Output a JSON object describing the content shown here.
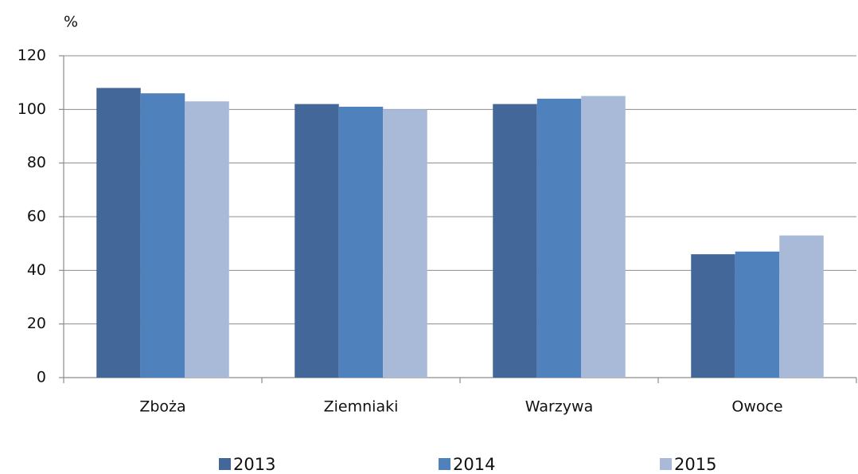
{
  "chart_data": {
    "type": "bar",
    "y_label": "%",
    "categories": [
      "Zboża",
      "Ziemniaki",
      "Warzywa",
      "Owoce"
    ],
    "series": [
      {
        "name": "2013",
        "color": "#44679a",
        "values": [
          108,
          102,
          102,
          46
        ]
      },
      {
        "name": "2014",
        "color": "#4f81bd",
        "values": [
          106,
          101,
          104,
          47
        ]
      },
      {
        "name": "2015",
        "color": "#a9b9d8",
        "values": [
          103,
          100,
          105,
          53
        ]
      }
    ],
    "ylim": [
      0,
      120
    ],
    "yticks": [
      0,
      20,
      40,
      60,
      80,
      100,
      120
    ],
    "grid": true,
    "legend": "bottom"
  }
}
